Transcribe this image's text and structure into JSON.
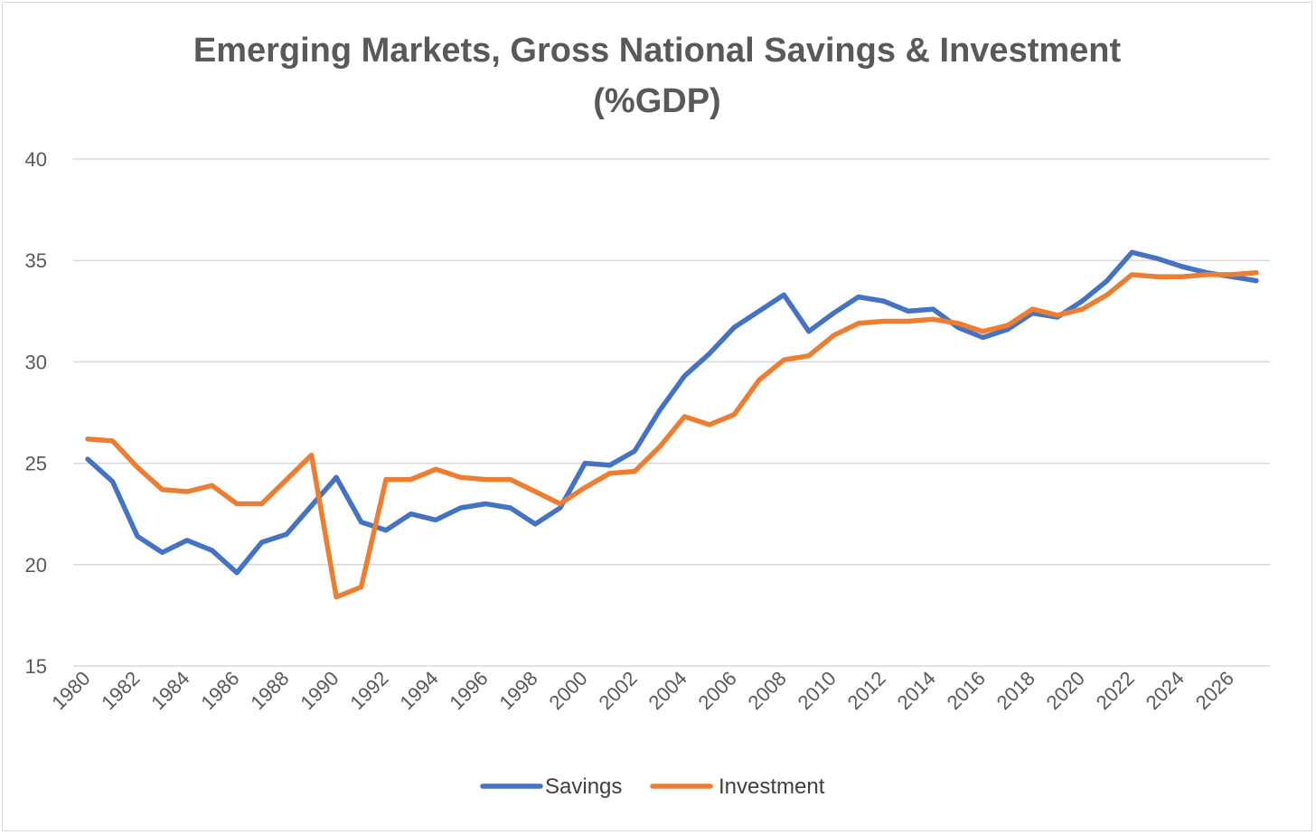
{
  "chart_data": {
    "type": "line",
    "title": "Emerging Markets, Gross National Savings & Investment (%GDP)",
    "title_lines": [
      "Emerging Markets, Gross National Savings & Investment",
      "(%GDP)"
    ],
    "xlabel": "",
    "ylabel": "",
    "x": [
      1980,
      1981,
      1982,
      1983,
      1984,
      1985,
      1986,
      1987,
      1988,
      1989,
      1990,
      1991,
      1992,
      1993,
      1994,
      1995,
      1996,
      1997,
      1998,
      1999,
      2000,
      2001,
      2002,
      2003,
      2004,
      2005,
      2006,
      2007,
      2008,
      2009,
      2010,
      2011,
      2012,
      2013,
      2014,
      2015,
      2016,
      2017,
      2018,
      2019,
      2020,
      2021,
      2022,
      2023,
      2024,
      2025,
      2026,
      2027
    ],
    "x_tick_labels": [
      "1980",
      "1982",
      "1984",
      "1986",
      "1988",
      "1990",
      "1992",
      "1994",
      "1996",
      "1998",
      "2000",
      "2002",
      "2004",
      "2006",
      "2008",
      "2010",
      "2012",
      "2014",
      "2016",
      "2018",
      "2020",
      "2022",
      "2024",
      "2026"
    ],
    "ylim": [
      15,
      40
    ],
    "y_ticks": [
      15,
      20,
      25,
      30,
      35,
      40
    ],
    "y_tick_labels": [
      "15",
      "20",
      "25",
      "30",
      "35",
      "40"
    ],
    "grid": true,
    "legend_position": "bottom-center",
    "series": [
      {
        "name": "Savings",
        "color": "#4472c4",
        "values": [
          25.2,
          24.1,
          21.4,
          20.6,
          21.2,
          20.7,
          19.6,
          21.1,
          21.5,
          22.9,
          24.3,
          22.1,
          21.7,
          22.5,
          22.2,
          22.8,
          23.0,
          22.8,
          22.0,
          22.8,
          25.0,
          24.9,
          25.6,
          27.6,
          29.3,
          30.4,
          31.7,
          32.5,
          33.3,
          31.5,
          32.4,
          33.2,
          33.0,
          32.5,
          32.6,
          31.7,
          31.2,
          31.6,
          32.4,
          32.2,
          33.0,
          34.0,
          35.4,
          35.1,
          34.7,
          34.4,
          34.2,
          34.0
        ]
      },
      {
        "name": "Investment",
        "color": "#ed7d31",
        "values": [
          26.2,
          26.1,
          24.8,
          23.7,
          23.6,
          23.9,
          23.0,
          23.0,
          24.2,
          25.4,
          18.4,
          18.9,
          24.2,
          24.2,
          24.7,
          24.3,
          24.2,
          24.2,
          23.6,
          23.0,
          23.8,
          24.5,
          24.6,
          25.8,
          27.3,
          26.9,
          27.4,
          29.1,
          30.1,
          30.3,
          31.3,
          31.9,
          32.0,
          32.0,
          32.1,
          31.9,
          31.5,
          31.8,
          32.6,
          32.3,
          32.6,
          33.3,
          34.3,
          34.2,
          34.2,
          34.3,
          34.3,
          34.4
        ]
      }
    ]
  }
}
